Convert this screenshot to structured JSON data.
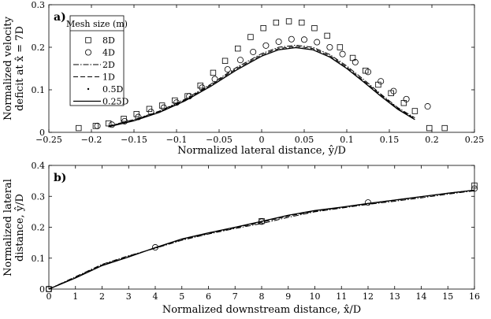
{
  "chart_data": [
    {
      "panel_label": "a)",
      "type": "scatter+line",
      "xlabel": "Normalized lateral distance, ŷ/D",
      "ylabel_line1": "Normalized velocity",
      "ylabel_line2": "deficit at x̂ = 7D",
      "xlim": [
        -0.25,
        0.25
      ],
      "ylim": [
        0,
        0.3
      ],
      "xticks": [
        "-0.25",
        "-0.2",
        "-0.15",
        "-0.1",
        "-0.05",
        "0",
        "0.05",
        "0.1",
        "0.15",
        "0.2",
        "0.25"
      ],
      "yticks": [
        "0",
        "0.1",
        "0.2",
        "0.3"
      ],
      "legend_title": "Mesh size (m)",
      "legend_position": "top-left",
      "series": [
        {
          "name": "8D",
          "style": "square",
          "x": [
            -0.215,
            -0.195,
            -0.18,
            -0.162,
            -0.147,
            -0.132,
            -0.117,
            -0.102,
            -0.087,
            -0.072,
            -0.057,
            -0.043,
            -0.028,
            -0.013,
            0.002,
            0.017,
            0.032,
            0.047,
            0.062,
            0.077,
            0.092,
            0.107,
            0.122,
            0.137,
            0.152,
            0.167,
            0.18,
            0.197,
            0.215
          ],
          "y": [
            0.01,
            0.015,
            0.021,
            0.032,
            0.043,
            0.055,
            0.063,
            0.075,
            0.085,
            0.11,
            0.14,
            0.168,
            0.197,
            0.224,
            0.245,
            0.258,
            0.261,
            0.258,
            0.245,
            0.227,
            0.2,
            0.175,
            0.145,
            0.112,
            0.092,
            0.069,
            0.05,
            0.01,
            0.01
          ]
        },
        {
          "name": "4D",
          "style": "circle",
          "x": [
            -0.193,
            -0.176,
            -0.161,
            -0.145,
            -0.13,
            -0.115,
            -0.1,
            -0.085,
            -0.07,
            -0.055,
            -0.04,
            -0.025,
            -0.01,
            0.005,
            0.02,
            0.035,
            0.05,
            0.065,
            0.08,
            0.095,
            0.11,
            0.125,
            0.14,
            0.155,
            0.17,
            0.195
          ],
          "y": [
            0.015,
            0.018,
            0.026,
            0.036,
            0.048,
            0.058,
            0.07,
            0.085,
            0.105,
            0.125,
            0.148,
            0.17,
            0.189,
            0.204,
            0.213,
            0.219,
            0.218,
            0.212,
            0.2,
            0.184,
            0.165,
            0.142,
            0.12,
            0.097,
            0.078,
            0.061
          ]
        },
        {
          "name": "2D",
          "style": "dashdot",
          "x": [
            -0.18,
            -0.15,
            -0.12,
            -0.09,
            -0.06,
            -0.03,
            0.0,
            0.02,
            0.04,
            0.06,
            0.08,
            0.1,
            0.12,
            0.14,
            0.16,
            0.18
          ],
          "y": [
            0.015,
            0.03,
            0.05,
            0.078,
            0.113,
            0.152,
            0.185,
            0.2,
            0.205,
            0.2,
            0.183,
            0.156,
            0.124,
            0.09,
            0.058,
            0.034
          ]
        },
        {
          "name": "1D",
          "style": "dashed",
          "x": [
            -0.18,
            -0.15,
            -0.12,
            -0.09,
            -0.06,
            -0.03,
            0.0,
            0.02,
            0.04,
            0.06,
            0.08,
            0.1,
            0.12,
            0.14,
            0.16,
            0.18
          ],
          "y": [
            0.014,
            0.029,
            0.049,
            0.076,
            0.111,
            0.149,
            0.182,
            0.197,
            0.202,
            0.197,
            0.18,
            0.153,
            0.121,
            0.088,
            0.056,
            0.032
          ]
        },
        {
          "name": "0.5D",
          "style": "dotted",
          "x": [
            -0.18,
            -0.15,
            -0.12,
            -0.09,
            -0.06,
            -0.03,
            0.0,
            0.02,
            0.04,
            0.06,
            0.08,
            0.1,
            0.12,
            0.14,
            0.16,
            0.18
          ],
          "y": [
            0.013,
            0.028,
            0.048,
            0.075,
            0.109,
            0.147,
            0.18,
            0.195,
            0.2,
            0.195,
            0.178,
            0.151,
            0.119,
            0.086,
            0.055,
            0.031
          ]
        },
        {
          "name": "0.25D",
          "style": "solid",
          "x": [
            -0.18,
            -0.15,
            -0.12,
            -0.09,
            -0.06,
            -0.03,
            0.0,
            0.02,
            0.04,
            0.06,
            0.08,
            0.1,
            0.12,
            0.14,
            0.16,
            0.18
          ],
          "y": [
            0.013,
            0.027,
            0.047,
            0.074,
            0.108,
            0.146,
            0.179,
            0.194,
            0.199,
            0.194,
            0.177,
            0.15,
            0.118,
            0.085,
            0.054,
            0.03
          ]
        }
      ]
    },
    {
      "panel_label": "b)",
      "type": "scatter+line",
      "xlabel": "Normalized downstream distance, x̂/D",
      "ylabel_line1": "Normalized lateral",
      "ylabel_line2": "distance, ŷ/D",
      "xlim": [
        0,
        16
      ],
      "ylim": [
        0,
        0.4
      ],
      "xticks": [
        "0",
        "1",
        "2",
        "3",
        "4",
        "5",
        "6",
        "7",
        "8",
        "9",
        "10",
        "11",
        "12",
        "13",
        "14",
        "15",
        "16"
      ],
      "yticks": [
        "0",
        "0.1",
        "0.2",
        "0.3",
        "0.4"
      ],
      "series": [
        {
          "name": "8D",
          "style": "square",
          "x": [
            0,
            8,
            16
          ],
          "y": [
            0,
            0.22,
            0.335
          ]
        },
        {
          "name": "4D",
          "style": "circle",
          "x": [
            0,
            4,
            8,
            12,
            16
          ],
          "y": [
            0,
            0.135,
            0.218,
            0.28,
            0.325
          ]
        },
        {
          "name": "2D",
          "style": "dashdot",
          "x": [
            0,
            1,
            2,
            3,
            4,
            5,
            6,
            7,
            8,
            9,
            10,
            11,
            12,
            13,
            14,
            15,
            16
          ],
          "y": [
            0,
            0.04,
            0.08,
            0.108,
            0.132,
            0.158,
            0.178,
            0.196,
            0.212,
            0.232,
            0.25,
            0.262,
            0.274,
            0.284,
            0.295,
            0.307,
            0.318
          ]
        },
        {
          "name": "1D",
          "style": "dashed",
          "x": [
            0,
            1,
            2,
            3,
            4,
            5,
            6,
            7,
            8,
            9,
            10,
            11,
            12,
            13,
            14,
            15,
            16
          ],
          "y": [
            0,
            0.038,
            0.078,
            0.106,
            0.133,
            0.16,
            0.18,
            0.198,
            0.216,
            0.236,
            0.252,
            0.264,
            0.276,
            0.287,
            0.298,
            0.31,
            0.32
          ]
        },
        {
          "name": "0.5D",
          "style": "dotted",
          "x": [
            0,
            1,
            2,
            3,
            4,
            5,
            6,
            7,
            8,
            9,
            10,
            11,
            12,
            13,
            14,
            15,
            16
          ],
          "y": [
            0,
            0.037,
            0.077,
            0.105,
            0.134,
            0.161,
            0.181,
            0.199,
            0.218,
            0.238,
            0.253,
            0.264,
            0.277,
            0.288,
            0.299,
            0.31,
            0.32
          ]
        },
        {
          "name": "0.25D",
          "style": "solid",
          "x": [
            0,
            1,
            2,
            3,
            4,
            5,
            6,
            7,
            8,
            9,
            10,
            11,
            12,
            13,
            14,
            15,
            16
          ],
          "y": [
            0,
            0.036,
            0.076,
            0.104,
            0.134,
            0.162,
            0.182,
            0.2,
            0.219,
            0.239,
            0.254,
            0.265,
            0.277,
            0.288,
            0.299,
            0.31,
            0.32
          ]
        }
      ]
    }
  ]
}
